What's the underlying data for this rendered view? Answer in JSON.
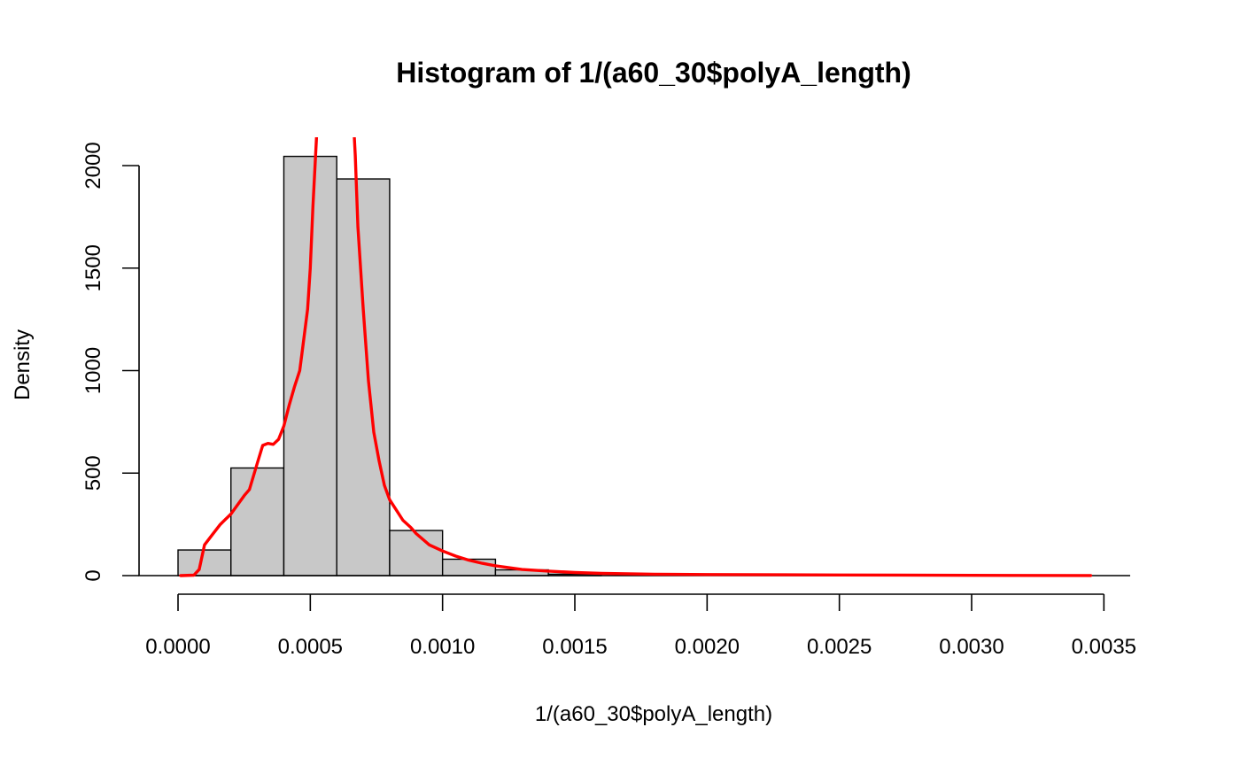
{
  "chart_data": {
    "type": "histogram",
    "title": "Histogram of 1/(a60_30$polyA_length)",
    "xlabel": "1/(a60_30$polyA_length)",
    "ylabel": "Density",
    "xlim": [
      -0.00016,
      0.0036
    ],
    "ylim": [
      0,
      2000
    ],
    "x_ticks": [
      0.0,
      0.0005,
      0.001,
      0.0015,
      0.002,
      0.0025,
      0.003,
      0.0035
    ],
    "x_tick_labels": [
      "0.0000",
      "0.0005",
      "0.0010",
      "0.0015",
      "0.0020",
      "0.0025",
      "0.0030",
      "0.0035"
    ],
    "y_ticks": [
      0,
      500,
      1000,
      1500,
      2000
    ],
    "y_tick_labels": [
      "0",
      "500",
      "1000",
      "1500",
      "2000"
    ],
    "bins": [
      {
        "x0": 0.0,
        "x1": 0.0002,
        "density": 125
      },
      {
        "x0": 0.0002,
        "x1": 0.0004,
        "density": 525
      },
      {
        "x0": 0.0004,
        "x1": 0.0006,
        "density": 2045
      },
      {
        "x0": 0.0006,
        "x1": 0.0008,
        "density": 1935
      },
      {
        "x0": 0.0008,
        "x1": 0.001,
        "density": 220
      },
      {
        "x0": 0.001,
        "x1": 0.0012,
        "density": 80
      },
      {
        "x0": 0.0012,
        "x1": 0.0014,
        "density": 28
      },
      {
        "x0": 0.0014,
        "x1": 0.0016,
        "density": 7
      }
    ],
    "density_line": {
      "color": "#ff0000",
      "points": [
        [
          1e-05,
          0
        ],
        [
          6e-05,
          2
        ],
        [
          8e-05,
          30
        ],
        [
          0.0001,
          150
        ],
        [
          0.00013,
          200
        ],
        [
          0.00016,
          250
        ],
        [
          0.0002,
          300
        ],
        [
          0.00025,
          390
        ],
        [
          0.00027,
          420
        ],
        [
          0.0003,
          550
        ],
        [
          0.00032,
          635
        ],
        [
          0.00034,
          645
        ],
        [
          0.00036,
          640
        ],
        [
          0.00038,
          665
        ],
        [
          0.0004,
          730
        ],
        [
          0.00042,
          830
        ],
        [
          0.00044,
          920
        ],
        [
          0.00046,
          1000
        ],
        [
          0.00047,
          1100
        ],
        [
          0.00049,
          1300
        ],
        [
          0.0005,
          1500
        ],
        [
          0.00051,
          1800
        ],
        [
          0.00052,
          2050
        ],
        [
          0.00053,
          2300
        ]
      ],
      "points_right": [
        [
          0.00066,
          2300
        ],
        [
          0.00067,
          2050
        ],
        [
          0.00068,
          1700
        ],
        [
          0.0007,
          1300
        ],
        [
          0.00072,
          950
        ],
        [
          0.00074,
          700
        ],
        [
          0.00076,
          560
        ],
        [
          0.00078,
          440
        ],
        [
          0.0008,
          370
        ],
        [
          0.00082,
          330
        ],
        [
          0.00085,
          270
        ],
        [
          0.00088,
          235
        ],
        [
          0.0009,
          205
        ],
        [
          0.00095,
          150
        ],
        [
          0.001,
          120
        ],
        [
          0.00105,
          95
        ],
        [
          0.0011,
          75
        ],
        [
          0.00115,
          60
        ],
        [
          0.0012,
          48
        ],
        [
          0.0013,
          30
        ],
        [
          0.0014,
          22
        ],
        [
          0.0015,
          15
        ],
        [
          0.0016,
          11
        ],
        [
          0.0018,
          7
        ],
        [
          0.002,
          5
        ],
        [
          0.0025,
          3
        ],
        [
          0.003,
          1.5
        ],
        [
          0.00345,
          0.5
        ]
      ]
    }
  }
}
